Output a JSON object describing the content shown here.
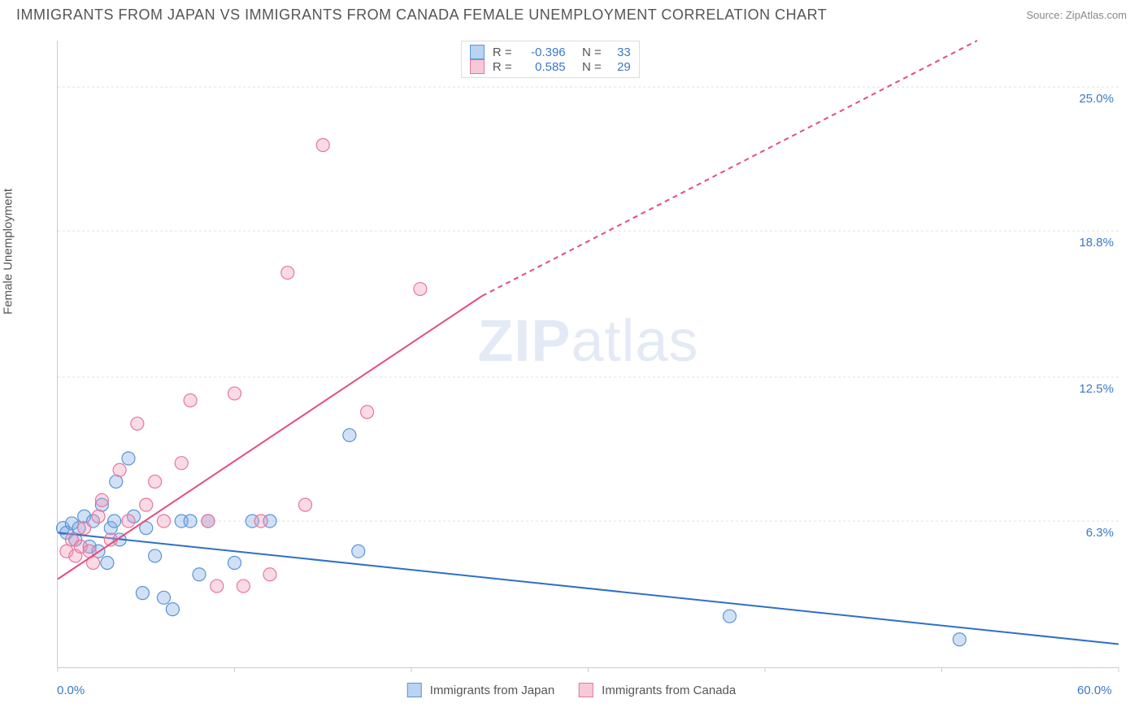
{
  "header": {
    "title": "IMMIGRANTS FROM JAPAN VS IMMIGRANTS FROM CANADA FEMALE UNEMPLOYMENT CORRELATION CHART",
    "source": "Source: ZipAtlas.com"
  },
  "chart": {
    "type": "scatter",
    "ylabel": "Female Unemployment",
    "watermark": {
      "bold": "ZIP",
      "rest": "atlas"
    },
    "xlim": [
      0,
      60
    ],
    "ylim": [
      0,
      27
    ],
    "x_axis_labels": [
      {
        "value": 0.0,
        "text": "0.0%"
      },
      {
        "value": 60.0,
        "text": "60.0%"
      }
    ],
    "y_axis_labels": [
      {
        "value": 6.3,
        "text": "6.3%"
      },
      {
        "value": 12.5,
        "text": "12.5%"
      },
      {
        "value": 18.8,
        "text": "18.8%"
      },
      {
        "value": 25.0,
        "text": "25.0%"
      }
    ],
    "x_ticks": [
      0,
      10,
      20,
      30,
      40,
      50,
      60
    ],
    "grid_color": "#e0e0e0",
    "background_color": "#ffffff",
    "marker_radius": 8,
    "marker_stroke_width": 1.2,
    "trend_line_width": 2,
    "trend_dash": "6,5",
    "series": [
      {
        "name": "Immigrants from Japan",
        "color_fill": "rgba(120,170,230,0.35)",
        "color_stroke": "#5a94d6",
        "swatch_fill": "#b9d3f0",
        "swatch_border": "#5a94d6",
        "trend_color": "#2f6fc6",
        "R": "-0.396",
        "N": "33",
        "trend": {
          "x1": 0,
          "y1": 5.8,
          "x2": 60,
          "y2": 1.0
        },
        "points": [
          [
            0.3,
            6.0
          ],
          [
            0.5,
            5.8
          ],
          [
            0.8,
            6.2
          ],
          [
            1.0,
            5.5
          ],
          [
            1.2,
            6.0
          ],
          [
            1.5,
            6.5
          ],
          [
            1.8,
            5.2
          ],
          [
            2.0,
            6.3
          ],
          [
            2.3,
            5.0
          ],
          [
            2.5,
            7.0
          ],
          [
            2.8,
            4.5
          ],
          [
            3.0,
            6.0
          ],
          [
            3.3,
            8.0
          ],
          [
            3.5,
            5.5
          ],
          [
            4.0,
            9.0
          ],
          [
            4.3,
            6.5
          ],
          [
            4.8,
            3.2
          ],
          [
            5.0,
            6.0
          ],
          [
            5.5,
            4.8
          ],
          [
            6.0,
            3.0
          ],
          [
            6.5,
            2.5
          ],
          [
            7.0,
            6.3
          ],
          [
            7.5,
            6.3
          ],
          [
            8.0,
            4.0
          ],
          [
            8.5,
            6.3
          ],
          [
            10.0,
            4.5
          ],
          [
            11.0,
            6.3
          ],
          [
            12.0,
            6.3
          ],
          [
            16.5,
            10.0
          ],
          [
            17.0,
            5.0
          ],
          [
            38.0,
            2.2
          ],
          [
            51.0,
            1.2
          ],
          [
            3.2,
            6.3
          ]
        ]
      },
      {
        "name": "Immigrants from Canada",
        "color_fill": "rgba(240,150,180,0.35)",
        "color_stroke": "#e6779d",
        "swatch_fill": "#f6c9d8",
        "swatch_border": "#e6779d",
        "trend_color": "#e44d7a",
        "R": "0.585",
        "N": "29",
        "trend": {
          "x1": 0,
          "y1": 3.8,
          "solid_x2": 24,
          "solid_y2": 16.0,
          "x2": 52,
          "y2": 27
        },
        "points": [
          [
            0.5,
            5.0
          ],
          [
            0.8,
            5.5
          ],
          [
            1.0,
            4.8
          ],
          [
            1.3,
            5.2
          ],
          [
            1.5,
            6.0
          ],
          [
            1.8,
            5.0
          ],
          [
            2.0,
            4.5
          ],
          [
            2.3,
            6.5
          ],
          [
            2.5,
            7.2
          ],
          [
            3.0,
            5.5
          ],
          [
            3.5,
            8.5
          ],
          [
            4.0,
            6.3
          ],
          [
            4.5,
            10.5
          ],
          [
            5.0,
            7.0
          ],
          [
            5.5,
            8.0
          ],
          [
            6.0,
            6.3
          ],
          [
            7.0,
            8.8
          ],
          [
            7.5,
            11.5
          ],
          [
            8.5,
            6.3
          ],
          [
            9.0,
            3.5
          ],
          [
            10.0,
            11.8
          ],
          [
            10.5,
            3.5
          ],
          [
            11.5,
            6.3
          ],
          [
            12.0,
            4.0
          ],
          [
            13.0,
            17.0
          ],
          [
            14.0,
            7.0
          ],
          [
            15.0,
            22.5
          ],
          [
            17.5,
            11.0
          ],
          [
            20.5,
            16.3
          ]
        ]
      }
    ],
    "legend_top": [
      {
        "series_index": 0
      },
      {
        "series_index": 1
      }
    ],
    "legend_bottom": [
      {
        "series_index": 0
      },
      {
        "series_index": 1
      }
    ]
  }
}
